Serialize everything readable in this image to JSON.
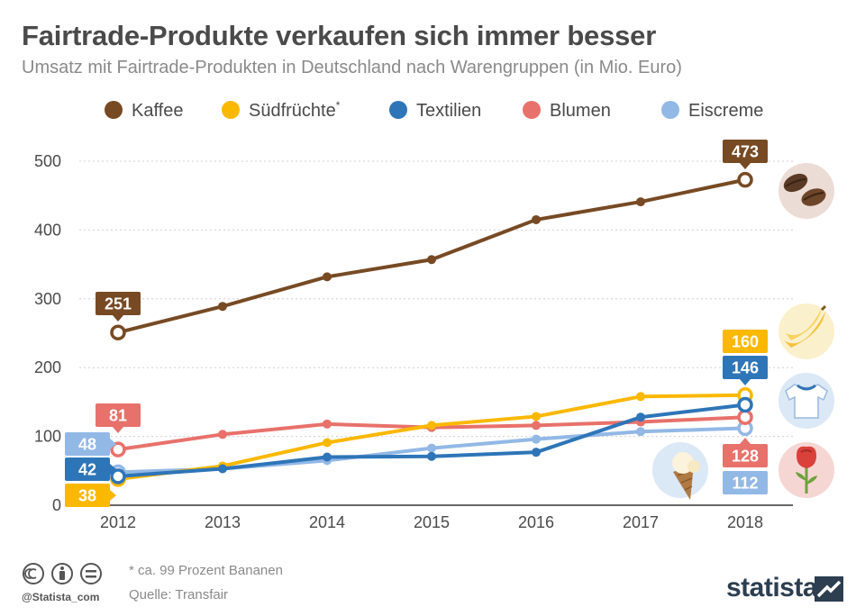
{
  "header": {
    "title": "Fairtrade-Produkte verkaufen sich immer besser",
    "subtitle": "Umsatz mit Fairtrade-Produkten in Deutschland nach Warengruppen (in Mio. Euro)"
  },
  "colors": {
    "kaffee": "#774a24",
    "suedfruechte": "#fbb800",
    "textilien": "#2e75b8",
    "blumen": "#e8716b",
    "eiscreme": "#92b8e6"
  },
  "icons": [
    "coffee-beans-icon",
    "bananas-icon",
    "tshirt-icon",
    "rose-icon",
    "ice-cream-icon"
  ],
  "chart_data": {
    "type": "line",
    "title": "Fairtrade-Produkte verkaufen sich immer besser",
    "subtitle": "Umsatz mit Fairtrade-Produkten in Deutschland nach Warengruppen (in Mio. Euro)",
    "x": [
      "2012",
      "2013",
      "2014",
      "2015",
      "2016",
      "2017",
      "2018"
    ],
    "yticks": [
      "0",
      "100",
      "200",
      "300",
      "400",
      "500"
    ],
    "ylim": [
      0,
      520
    ],
    "grid": true,
    "legend_position": "top",
    "series": [
      {
        "key": "kaffee",
        "name": "Kaffee",
        "values": [
          251,
          289,
          332,
          357,
          415,
          441,
          473
        ],
        "start_label": "251",
        "end_label": "473"
      },
      {
        "key": "suedfruechte",
        "name": "Südfrüchte",
        "name_suffix": "*",
        "values": [
          38,
          57,
          91,
          116,
          129,
          158,
          160
        ],
        "start_label": "38",
        "end_label": "160"
      },
      {
        "key": "textilien",
        "name": "Textilien",
        "values": [
          42,
          53,
          70,
          71,
          77,
          128,
          146
        ],
        "start_label": "42",
        "end_label": "146"
      },
      {
        "key": "blumen",
        "name": "Blumen",
        "values": [
          81,
          103,
          118,
          113,
          116,
          121,
          128
        ],
        "start_label": "81",
        "end_label": "128"
      },
      {
        "key": "eiscreme",
        "name": "Eiscreme",
        "values": [
          48,
          53,
          65,
          83,
          96,
          107,
          112
        ],
        "start_label": "48",
        "end_label": "112"
      }
    ]
  },
  "footer": {
    "footnote": "* ca. 99 Prozent Bananen",
    "source": "Quelle: Transfair",
    "handle": "@Statista_com",
    "brand": "statista"
  }
}
